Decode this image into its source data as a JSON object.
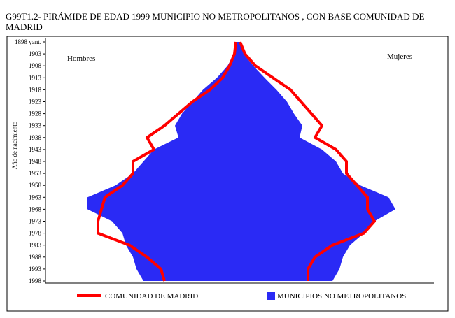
{
  "chart_data": {
    "type": "pyramid",
    "title": "G99T1.2- PIRÁMIDE DE EDAD 1999 MUNICIPIO NO METROPOLITANOS , CON BASE COMUNIDAD DE MADRID",
    "ylabel": "Año de nacimiento",
    "left_label": "Hombres",
    "right_label": "Mujeres",
    "categories": [
      "1898 yant.",
      "1903",
      "1908",
      "1913",
      "1918",
      "1923",
      "1928",
      "1933",
      "1938",
      "1943",
      "1948",
      "1953",
      "1958",
      "1963",
      "1968",
      "1973",
      "1978",
      "1983",
      "1988",
      "1993",
      "1998"
    ],
    "xlim": [
      -275,
      280
    ],
    "series": [
      {
        "name": "COMUNIDAD DE MADRID",
        "color": "#ff0000",
        "style": "line",
        "hombres": [
          3,
          5,
          12,
          22,
          40,
          65,
          85,
          105,
          130,
          120,
          150,
          150,
          165,
          190,
          195,
          200,
          200,
          155,
          130,
          110,
          105
        ],
        "mujeres": [
          3,
          10,
          25,
          50,
          75,
          90,
          105,
          120,
          110,
          140,
          155,
          155,
          170,
          185,
          185,
          195,
          180,
          135,
          110,
          100,
          100
        ]
      },
      {
        "name": "MUNICIPIOS NO METROPOLITANOS",
        "color": "#2a2af5",
        "style": "area",
        "hombres": [
          3,
          5,
          15,
          30,
          50,
          65,
          80,
          90,
          85,
          120,
          135,
          150,
          175,
          215,
          215,
          180,
          165,
          160,
          150,
          145,
          135
        ],
        "mujeres": [
          3,
          8,
          22,
          38,
          55,
          70,
          80,
          92,
          88,
          120,
          140,
          150,
          175,
          215,
          225,
          195,
          180,
          160,
          150,
          145,
          135
        ]
      }
    ]
  }
}
